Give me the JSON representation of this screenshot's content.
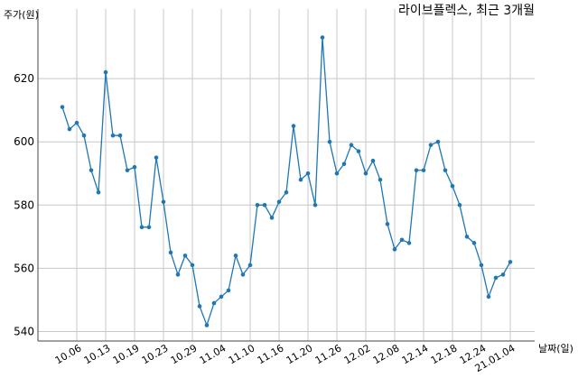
{
  "chart_data": {
    "type": "line",
    "title": "라이브플렉스, 최근 3개월",
    "y_label": "주가(원)",
    "x_label": "날짜(일)",
    "categories": [
      null,
      null,
      "10.06",
      null,
      null,
      null,
      "10.13",
      null,
      null,
      null,
      "10.19",
      null,
      null,
      null,
      "10.23",
      null,
      null,
      null,
      "10.29",
      null,
      null,
      null,
      "11.04",
      null,
      null,
      null,
      "11.10",
      null,
      null,
      null,
      "11.16",
      null,
      null,
      null,
      "11.20",
      null,
      null,
      null,
      "11.26",
      null,
      null,
      null,
      "12.02",
      null,
      null,
      null,
      "12.08",
      null,
      null,
      null,
      "12.14",
      null,
      null,
      null,
      "12.18",
      null,
      null,
      null,
      "12.24",
      null,
      null,
      null,
      "21.01.04"
    ],
    "values": [
      611,
      604,
      606,
      602,
      591,
      584,
      622,
      602,
      602,
      591,
      592,
      573,
      573,
      595,
      581,
      565,
      558,
      564,
      561,
      548,
      542,
      549,
      551,
      553,
      564,
      558,
      561,
      580,
      580,
      576,
      581,
      584,
      605,
      588,
      590,
      580,
      633,
      600,
      590,
      593,
      599,
      597,
      590,
      594,
      588,
      574,
      566,
      569,
      568,
      591,
      591,
      599,
      600,
      591,
      586,
      580,
      570,
      568,
      561,
      551,
      557,
      558,
      562
    ],
    "color": "#1f77b4",
    "ylim": [
      537,
      642
    ],
    "yticks": [
      540,
      560,
      580,
      600,
      620
    ],
    "grid": true
  }
}
